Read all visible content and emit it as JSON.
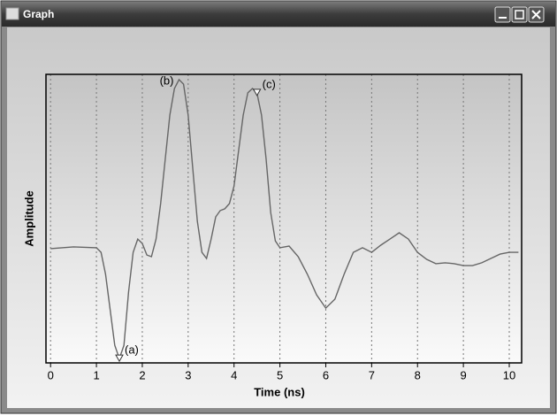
{
  "window": {
    "title": "Graph"
  },
  "chart_data": {
    "type": "line",
    "x_label": "Time (ns)",
    "y_label": "Amplitude",
    "x": [
      0,
      0.5,
      1,
      1.1,
      1.2,
      1.3,
      1.4,
      1.5,
      1.6,
      1.7,
      1.8,
      1.9,
      2,
      2.1,
      2.2,
      2.3,
      2.4,
      2.5,
      2.6,
      2.7,
      2.8,
      2.9,
      3,
      3.1,
      3.2,
      3.3,
      3.4,
      3.5,
      3.6,
      3.7,
      3.8,
      3.9,
      4,
      4.1,
      4.2,
      4.3,
      4.4,
      4.5,
      4.6,
      4.7,
      4.8,
      4.9,
      5,
      5.2,
      5.4,
      5.6,
      5.8,
      6,
      6.2,
      6.4,
      6.6,
      6.8,
      7,
      7.2,
      7.4,
      7.6,
      7.8,
      8,
      8.2,
      8.4,
      8.6,
      8.8,
      9,
      9.2,
      9.4,
      9.6,
      9.8,
      10,
      10.2
    ],
    "values": [
      0.396,
      0.402,
      0.399,
      0.383,
      0.307,
      0.184,
      0.061,
      0.015,
      0.061,
      0.245,
      0.383,
      0.429,
      0.414,
      0.374,
      0.368,
      0.429,
      0.552,
      0.706,
      0.859,
      0.951,
      0.982,
      0.966,
      0.859,
      0.675,
      0.491,
      0.383,
      0.362,
      0.429,
      0.506,
      0.528,
      0.534,
      0.552,
      0.613,
      0.736,
      0.859,
      0.936,
      0.951,
      0.936,
      0.859,
      0.706,
      0.521,
      0.423,
      0.399,
      0.405,
      0.368,
      0.307,
      0.236,
      0.19,
      0.221,
      0.307,
      0.383,
      0.399,
      0.383,
      0.408,
      0.429,
      0.451,
      0.429,
      0.383,
      0.359,
      0.344,
      0.347,
      0.344,
      0.337,
      0.337,
      0.347,
      0.362,
      0.377,
      0.383,
      0.383
    ],
    "color": "#666666",
    "xlim": [
      -0.1,
      10.27
    ],
    "ylim": [
      0,
      1
    ],
    "xticks": [
      0,
      1,
      2,
      3,
      4,
      5,
      6,
      7,
      8,
      9,
      10
    ],
    "grid": true,
    "annotations": [
      {
        "text": "(a)",
        "x": 1.5,
        "y": 0.015,
        "marker": "triangle"
      },
      {
        "text": "(b)",
        "x": 2.8,
        "y": 0.982
      },
      {
        "text": "(c)",
        "x": 4.5,
        "y": 0.936,
        "marker": "triangle"
      }
    ]
  }
}
